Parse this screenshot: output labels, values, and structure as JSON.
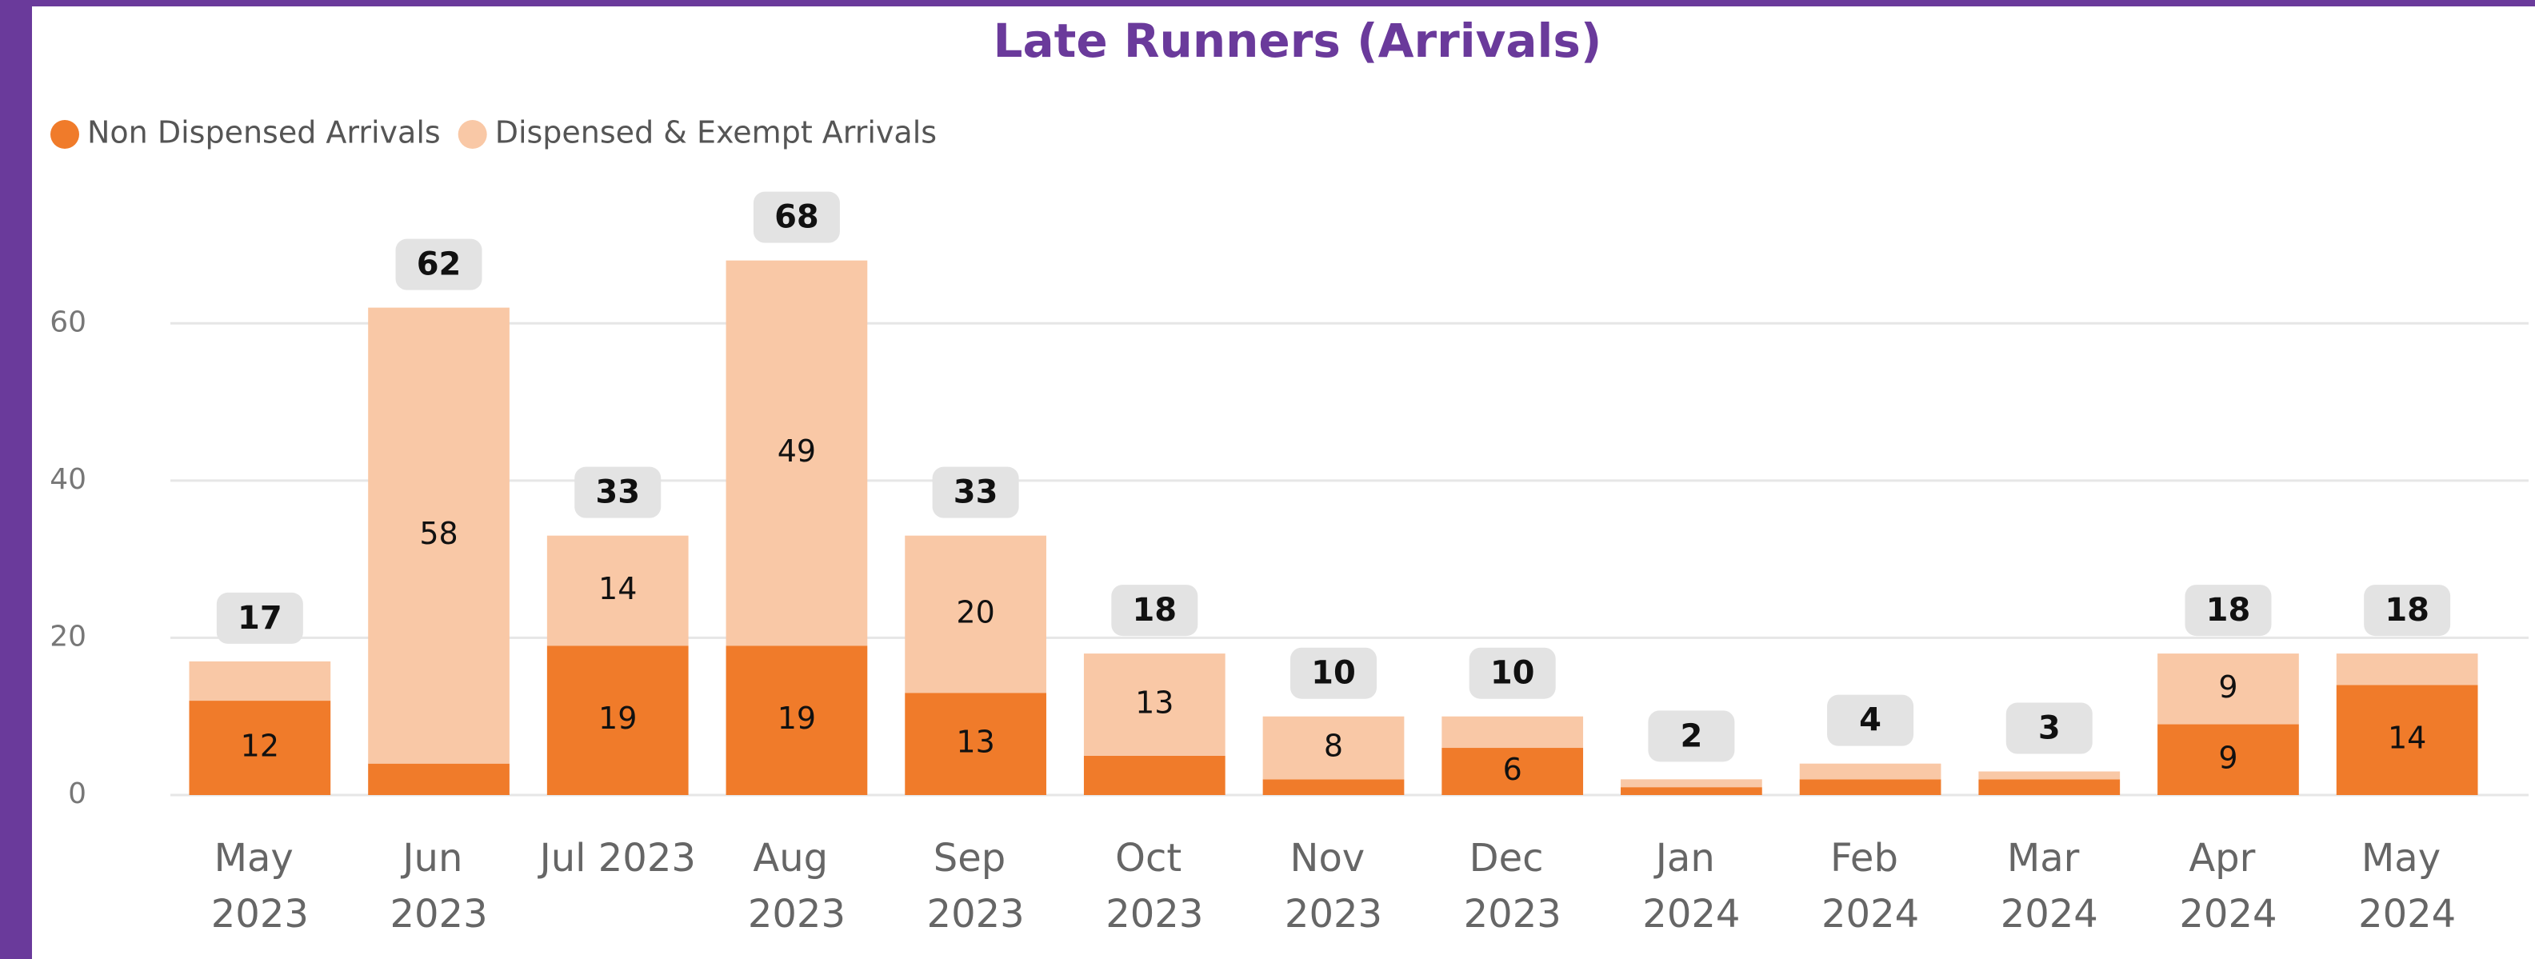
{
  "chart_data": {
    "type": "stacked_bar",
    "title": "Late Runners (Arrivals)",
    "categories": [
      "May 2023",
      "Jun 2023",
      "Jul 2023",
      "Aug 2023",
      "Sep 2023",
      "Oct 2023",
      "Nov 2023",
      "Dec 2023",
      "Jan 2024",
      "Feb 2024",
      "Mar 2024",
      "Apr 2024",
      "May 2024"
    ],
    "series": [
      {
        "name": "Non Dispensed Arrivals",
        "color": "#f07b2a",
        "values": [
          12,
          4,
          19,
          19,
          13,
          5,
          2,
          6,
          1,
          2,
          2,
          9,
          14
        ]
      },
      {
        "name": "Dispensed & Exempt Arrivals",
        "color": "#f9c8a6",
        "values": [
          5,
          58,
          14,
          49,
          20,
          13,
          8,
          4,
          1,
          2,
          1,
          9,
          4
        ]
      }
    ],
    "totals": [
      17,
      62,
      33,
      68,
      33,
      18,
      10,
      10,
      2,
      4,
      3,
      18,
      18
    ],
    "ylim": [
      0,
      70
    ],
    "yticks": [
      0,
      20,
      40,
      60
    ],
    "grid": true,
    "legend": "top-left"
  }
}
